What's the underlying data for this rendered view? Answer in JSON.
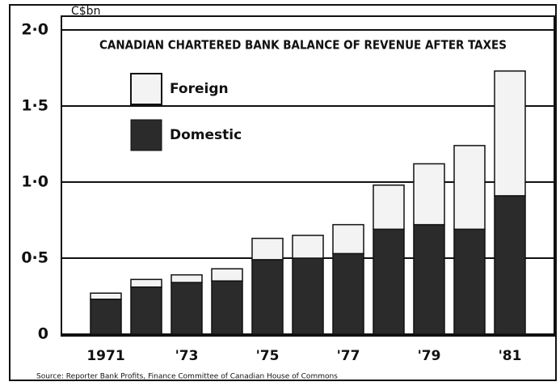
{
  "chart_data": {
    "type": "bar",
    "stacked": true,
    "title": "CANADIAN CHARTERED BANK BALANCE OF REVENUE AFTER TAXES",
    "y_label": "C$bn",
    "source": "Source: Reporter Bank Profits, Finance Committee of Canadian House of Commons",
    "categories": [
      "1971",
      null,
      "'73",
      null,
      "'75",
      null,
      "'77",
      null,
      "'79",
      null,
      "'81"
    ],
    "series": [
      {
        "name": "Domestic",
        "color": "#2b2b2b",
        "values": [
          0.23,
          0.31,
          0.34,
          0.35,
          0.49,
          0.5,
          0.53,
          0.69,
          0.72,
          0.69,
          0.91
        ]
      },
      {
        "name": "Foreign",
        "color": "#f3f3f3",
        "values": [
          0.04,
          0.05,
          0.05,
          0.08,
          0.14,
          0.15,
          0.19,
          0.29,
          0.4,
          0.55,
          0.82
        ]
      }
    ],
    "ylim": [
      0,
      2
    ],
    "yticks": [
      0,
      {
        "value": 0.5,
        "label": "0·5"
      },
      {
        "value": 1,
        "label": "1·0"
      },
      {
        "value": 1.5,
        "label": "1·5"
      },
      {
        "value": 2,
        "label": "2·0"
      }
    ],
    "grid": true
  }
}
